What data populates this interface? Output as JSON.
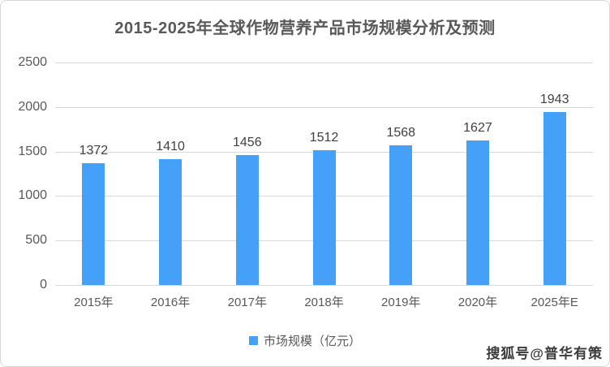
{
  "chart_data": {
    "type": "bar",
    "title": "2015-2025年全球作物营养产品市场规模分析及预测",
    "categories": [
      "2015年",
      "2016年",
      "2017年",
      "2018年",
      "2019年",
      "2020年",
      "2025年E"
    ],
    "series": [
      {
        "name": "市场规模（亿元）",
        "values": [
          1372,
          1410,
          1456,
          1512,
          1568,
          1627,
          1943
        ]
      }
    ],
    "xlabel": "",
    "ylabel": "",
    "ylim": [
      0,
      2500
    ],
    "yticks": [
      0,
      500,
      1000,
      1500,
      2000,
      2500
    ],
    "grid": true,
    "value_labels": true,
    "legend_position": "bottom",
    "bar_color": "#45a1f7"
  },
  "colors": {
    "bar": "#45a1f7",
    "gridline": "#d9d9d9",
    "axis_text": "#595959",
    "value_label_text": "#3f3f3f",
    "title_text": "#595959",
    "frame_border": "#d6d6d6"
  },
  "watermark": {
    "text": "搜狐号@普华有策"
  }
}
